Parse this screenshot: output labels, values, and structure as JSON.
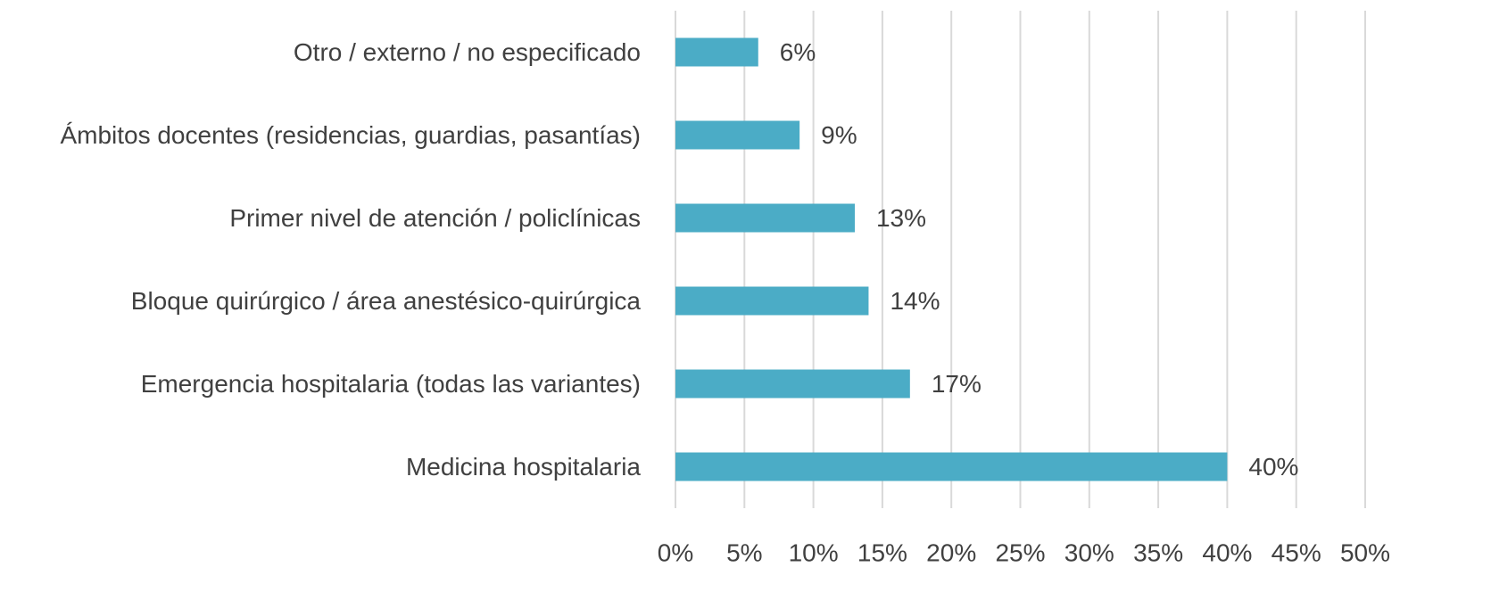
{
  "chart_data": {
    "type": "bar",
    "orientation": "horizontal",
    "categories": [
      "Otro / externo / no especificado",
      "Ámbitos docentes (residencias, guardias, pasantías)",
      "Primer nivel de atención / policlínicas",
      "Bloque quirúrgico / área anestésico-quirúrgica",
      "Emergencia hospitalaria (todas las variantes)",
      "Medicina hospitalaria"
    ],
    "values": [
      6,
      9,
      13,
      14,
      17,
      40
    ],
    "value_labels": [
      "6%",
      "9%",
      "13%",
      "14%",
      "17%",
      "40%"
    ],
    "color": "#4bacc6",
    "xlim": [
      0,
      50
    ],
    "xticks": [
      {
        "value": 0,
        "label": "0%"
      },
      {
        "value": 5,
        "label": "5%"
      },
      {
        "value": 10,
        "label": "10%"
      },
      {
        "value": 15,
        "label": "15%"
      },
      {
        "value": 20,
        "label": "20%"
      },
      {
        "value": 25,
        "label": "25%"
      },
      {
        "value": 30,
        "label": "30%"
      },
      {
        "value": 35,
        "label": "35%"
      },
      {
        "value": 40,
        "label": "40%"
      },
      {
        "value": 45,
        "label": "45%"
      },
      {
        "value": 50,
        "label": "50%"
      }
    ],
    "grid": true
  }
}
